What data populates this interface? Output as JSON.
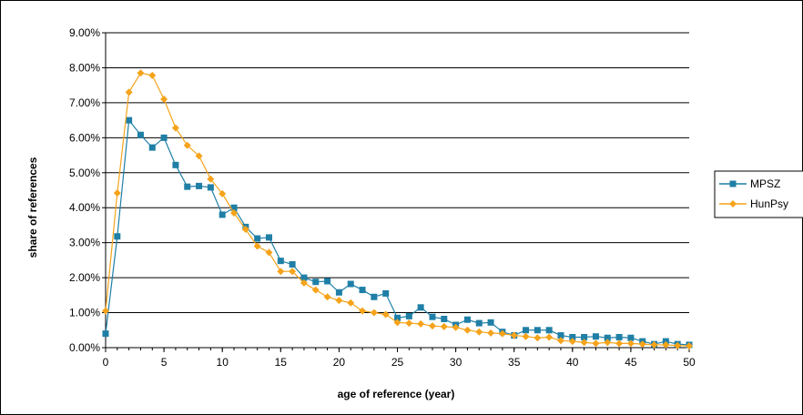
{
  "chart_data": {
    "type": "line",
    "title": "",
    "xlabel": "age of reference (year)",
    "ylabel": "share of references",
    "xlim": [
      0,
      50
    ],
    "ylim": [
      0,
      0.09
    ],
    "x_ticks": [
      "0",
      "5",
      "10",
      "15",
      "20",
      "25",
      "30",
      "35",
      "40",
      "45",
      "50"
    ],
    "y_ticks": [
      "0.00%",
      "1.00%",
      "2.00%",
      "3.00%",
      "4.00%",
      "5.00%",
      "6.00%",
      "7.00%",
      "8.00%",
      "9.00%"
    ],
    "grid": "horizontal",
    "legend_position": "right",
    "x": [
      0,
      1,
      2,
      3,
      4,
      5,
      6,
      7,
      8,
      9,
      10,
      11,
      12,
      13,
      14,
      15,
      16,
      17,
      18,
      19,
      20,
      21,
      22,
      23,
      24,
      25,
      26,
      27,
      28,
      29,
      30,
      31,
      32,
      33,
      34,
      35,
      36,
      37,
      38,
      39,
      40,
      41,
      42,
      43,
      44,
      45,
      46,
      47,
      48,
      49,
      50
    ],
    "series": [
      {
        "name": "MPSZ",
        "color": "#1f7fa6",
        "marker": "square",
        "values": [
          0.004,
          0.0318,
          0.065,
          0.0608,
          0.0572,
          0.06,
          0.0522,
          0.046,
          0.0462,
          0.0458,
          0.038,
          0.04,
          0.0345,
          0.0312,
          0.0315,
          0.0248,
          0.0238,
          0.02,
          0.0188,
          0.019,
          0.0158,
          0.0182,
          0.0165,
          0.0145,
          0.0155,
          0.0085,
          0.009,
          0.0115,
          0.0088,
          0.0082,
          0.0065,
          0.008,
          0.007,
          0.0072,
          0.0045,
          0.0035,
          0.005,
          0.005,
          0.005,
          0.0035,
          0.003,
          0.003,
          0.0032,
          0.0028,
          0.003,
          0.0028,
          0.0018,
          0.001,
          0.0018,
          0.001,
          0.0008
        ]
      },
      {
        "name": "HunPsy",
        "color": "#f5a31a",
        "marker": "diamond",
        "values": [
          0.0105,
          0.0442,
          0.073,
          0.0785,
          0.0778,
          0.071,
          0.0628,
          0.0578,
          0.0548,
          0.0482,
          0.044,
          0.0385,
          0.0338,
          0.029,
          0.0272,
          0.0218,
          0.0218,
          0.0185,
          0.0165,
          0.0145,
          0.0135,
          0.0128,
          0.0105,
          0.01,
          0.0095,
          0.0072,
          0.007,
          0.0068,
          0.0062,
          0.006,
          0.0058,
          0.005,
          0.0045,
          0.0042,
          0.004,
          0.0035,
          0.0032,
          0.0028,
          0.003,
          0.002,
          0.0018,
          0.0015,
          0.0012,
          0.0015,
          0.0012,
          0.0012,
          0.001,
          0.0008,
          0.0008,
          0.0006,
          0.0005
        ]
      }
    ]
  }
}
